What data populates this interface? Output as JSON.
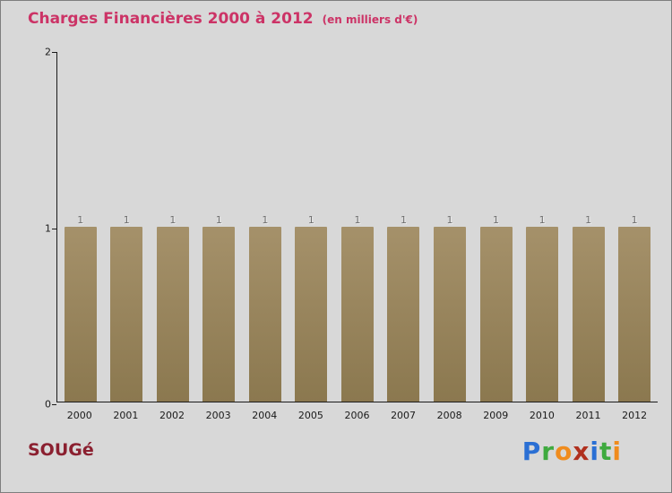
{
  "header": {
    "title": "Charges Financières 2000 à 2012",
    "subtitle": "(en milliers d'€)",
    "title_color": "#cc3366"
  },
  "chart_data": {
    "type": "bar",
    "title": "Charges Financières 2000 à 2012",
    "subtitle": "(en milliers d'€)",
    "categories": [
      "2000",
      "2001",
      "2002",
      "2003",
      "2004",
      "2005",
      "2006",
      "2007",
      "2008",
      "2009",
      "2010",
      "2011",
      "2012"
    ],
    "values": [
      1,
      1,
      1,
      1,
      1,
      1,
      1,
      1,
      1,
      1,
      1,
      1,
      1
    ],
    "xlabel": "",
    "ylabel": "",
    "ylim": [
      0,
      2
    ],
    "yticks": [
      0,
      1,
      2
    ],
    "grid": false,
    "legend": false,
    "bar_color_top": "#a5916a",
    "bar_color_bottom": "#8b784f",
    "value_label_color": "#6e6e6e"
  },
  "footer": {
    "company": "SOUGé",
    "company_color": "#8b2030",
    "logo_letters": [
      {
        "char": "P",
        "color": "#2a6fd4"
      },
      {
        "char": "r",
        "color": "#3faa3f"
      },
      {
        "char": "o",
        "color": "#f08c1e"
      },
      {
        "char": "x",
        "color": "#b0301e"
      },
      {
        "char": "i",
        "color": "#2a6fd4"
      },
      {
        "char": "t",
        "color": "#3faa3f"
      },
      {
        "char": "i",
        "color": "#f08c1e"
      }
    ]
  }
}
